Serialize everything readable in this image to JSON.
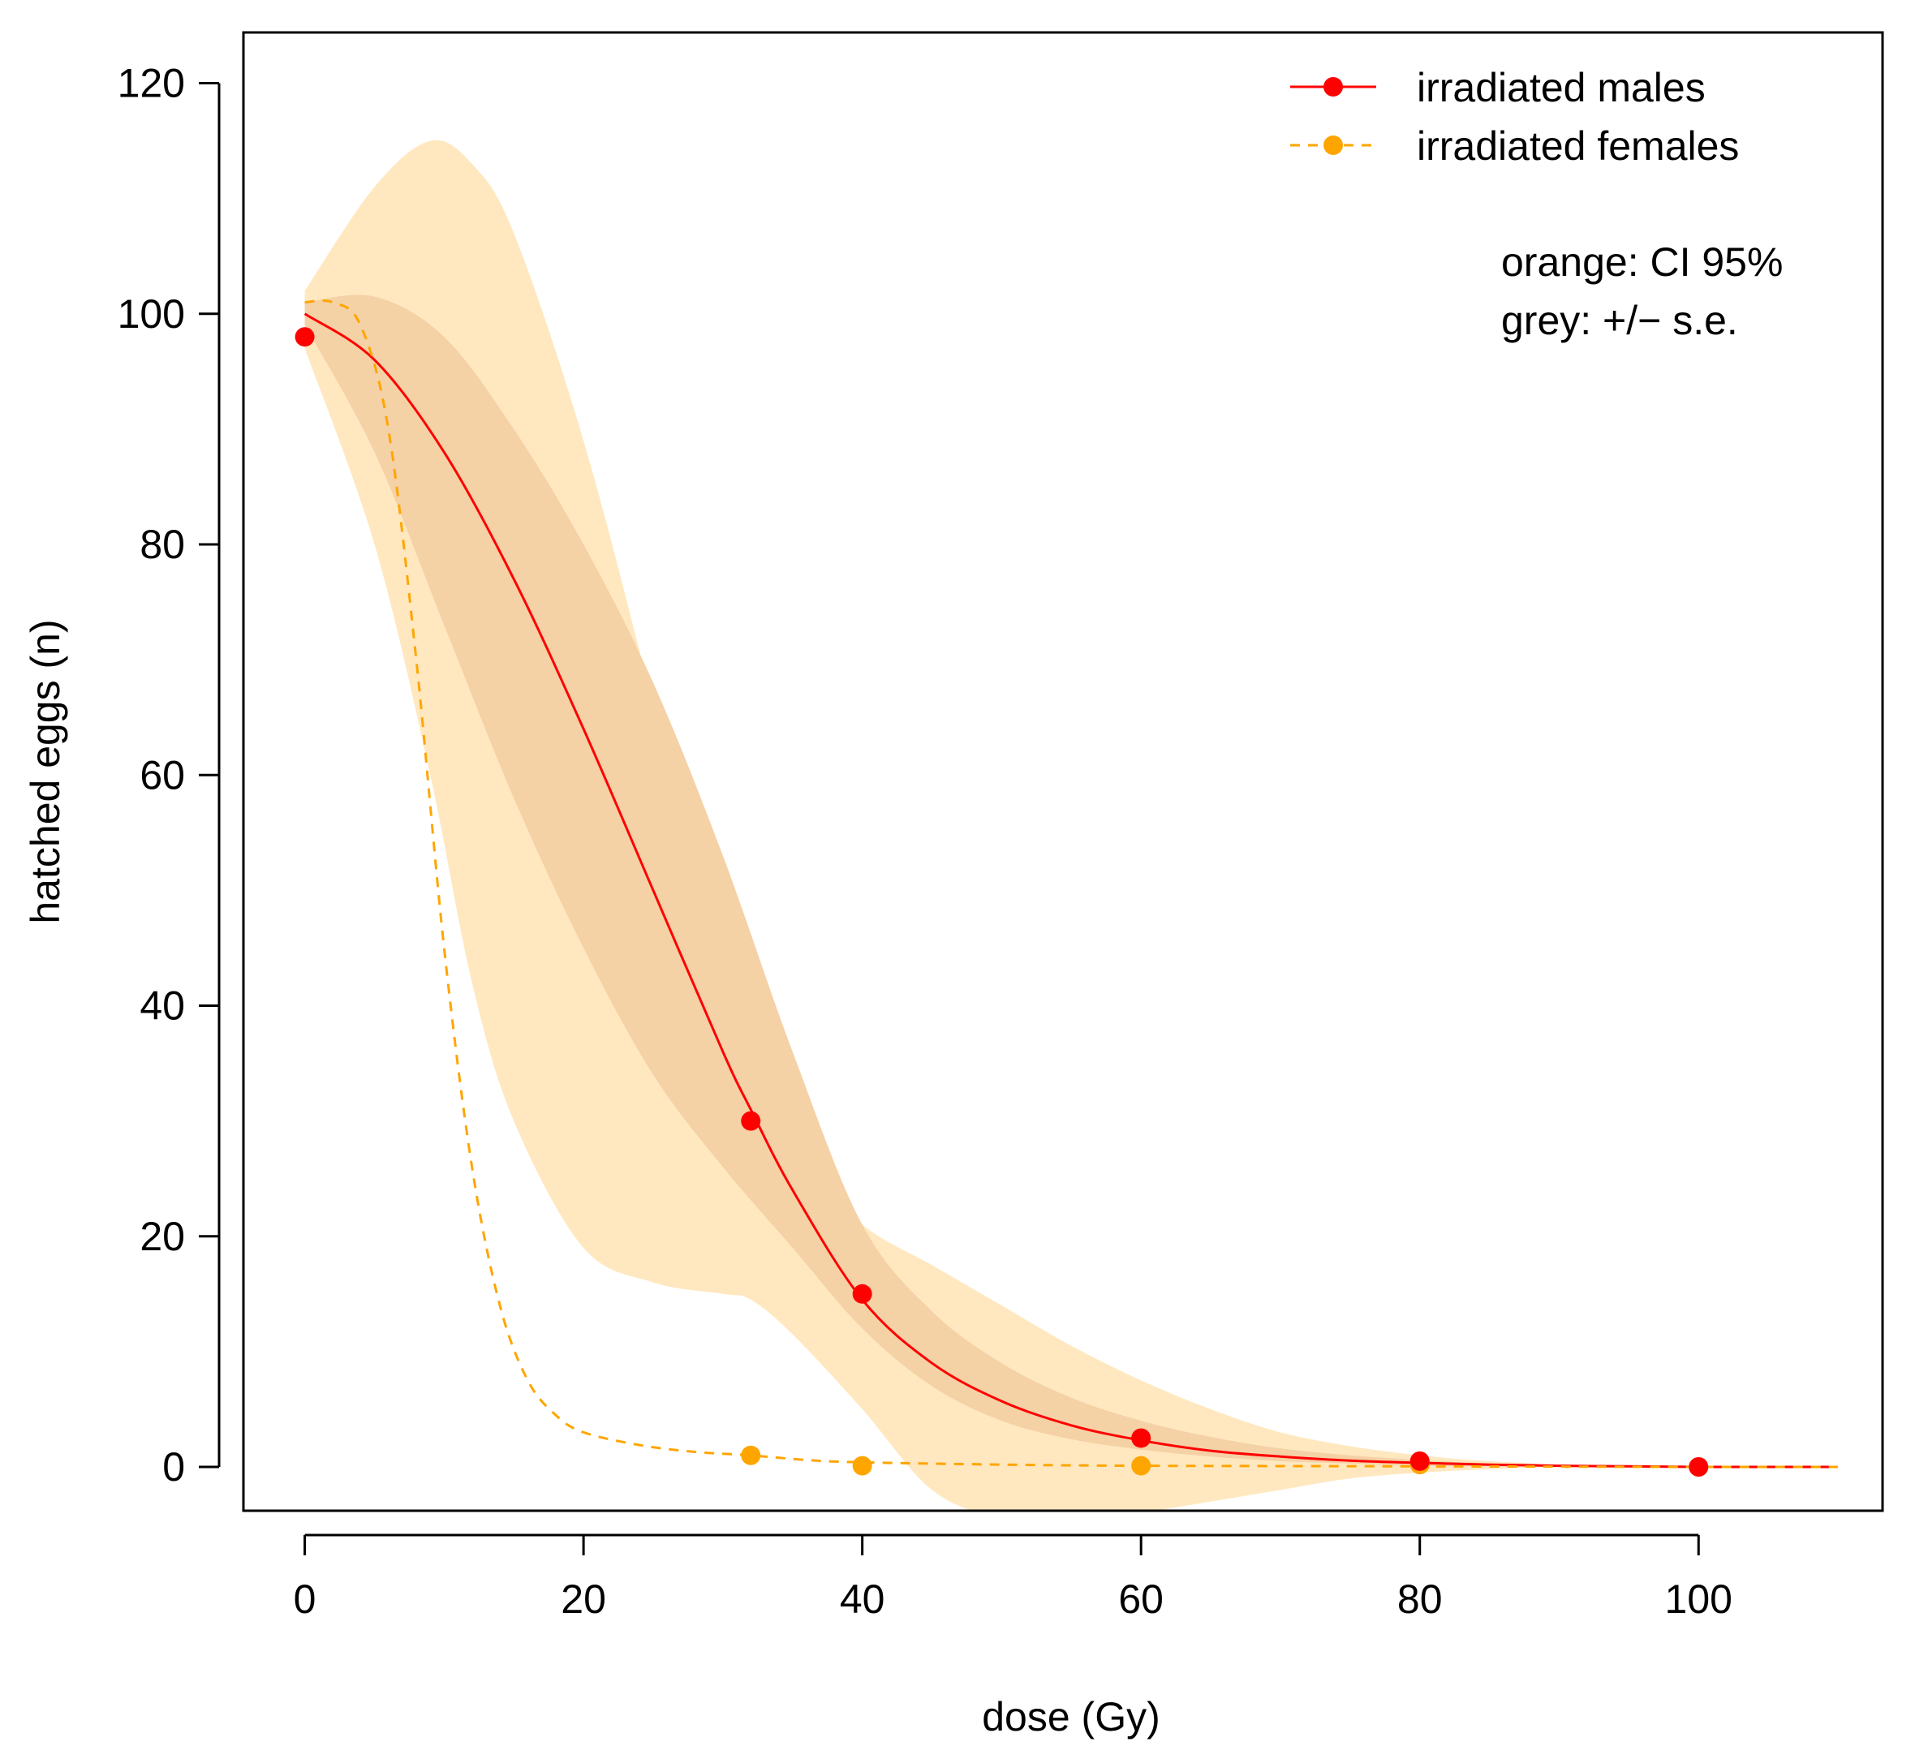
{
  "chart_data": {
    "type": "line",
    "xlabel": "dose (Gy)",
    "ylabel": "hatched eggs (n)",
    "xlim": [
      -4.4,
      113.2
    ],
    "ylim": [
      -3.8,
      124.4
    ],
    "x_ticks": [
      0,
      20,
      40,
      60,
      80,
      100
    ],
    "y_ticks": [
      0,
      20,
      40,
      60,
      80,
      100,
      120
    ],
    "legend_position": "top-right",
    "series": [
      {
        "name": "irradiated males",
        "color": "#ff0000",
        "line_style": "solid",
        "points": [
          {
            "x": 0,
            "y": 98
          },
          {
            "x": 32,
            "y": 30
          },
          {
            "x": 40,
            "y": 15
          },
          {
            "x": 60,
            "y": 2.5
          },
          {
            "x": 80,
            "y": 0.5
          },
          {
            "x": 100,
            "y": 0
          }
        ],
        "fit_curve": {
          "x": [
            0,
            5,
            10,
            15,
            20,
            25,
            30,
            32,
            35,
            40,
            45,
            50,
            55,
            60,
            65,
            70,
            75,
            80,
            85,
            90,
            95,
            100,
            105,
            110
          ],
          "y": [
            100,
            96,
            88,
            77,
            64,
            50,
            36,
            31,
            24,
            14.5,
            9,
            5.7,
            3.6,
            2.3,
            1.4,
            0.9,
            0.55,
            0.35,
            0.2,
            0.1,
            0.05,
            0,
            0,
            0
          ]
        },
        "se_band": {
          "x": [
            0,
            5,
            10,
            15,
            20,
            25,
            30,
            35,
            40,
            45,
            50,
            55,
            60,
            65,
            70,
            75,
            80,
            85,
            90,
            95,
            100,
            110
          ],
          "lower": [
            99,
            88,
            73,
            58,
            45,
            34,
            26,
            19,
            12,
            7,
            4,
            2.4,
            1.5,
            0.9,
            0.5,
            0.3,
            0.1,
            0.05,
            0,
            0,
            0,
            0
          ],
          "upper": [
            101,
            101.5,
            98,
            90,
            80,
            68,
            53,
            36,
            21,
            13.5,
            9,
            6,
            4,
            2.6,
            1.6,
            1,
            0.6,
            0.3,
            0.15,
            0.05,
            0,
            0
          ]
        },
        "ci95_band": {
          "x": [
            0,
            5,
            9,
            12,
            15,
            20,
            25,
            30,
            32,
            35,
            40,
            45,
            50,
            55,
            60,
            65,
            70,
            75,
            80,
            85,
            90,
            95,
            100,
            110
          ],
          "lower": [
            97,
            80,
            60,
            42,
            30,
            19,
            16,
            15,
            14.5,
            11.5,
            5,
            -2,
            -4.5,
            -5,
            -4,
            -3,
            -2,
            -1,
            -0.5,
            -0.2,
            0,
            0,
            0,
            0
          ],
          "upper": [
            102,
            111,
            115,
            113,
            107,
            89,
            66,
            41,
            33,
            27,
            21,
            17.5,
            14,
            10.5,
            7.5,
            5,
            3,
            1.8,
            1,
            0.5,
            0.2,
            0.05,
            0,
            0
          ]
        }
      },
      {
        "name": "irradiated females",
        "color": "#ffa500",
        "line_style": "dashed",
        "points": [
          {
            "x": 32,
            "y": 1
          },
          {
            "x": 40,
            "y": 0.1
          },
          {
            "x": 60,
            "y": 0.1
          },
          {
            "x": 80,
            "y": 0.2
          },
          {
            "x": 100,
            "y": 0
          }
        ],
        "fit_curve": {
          "x": [
            0,
            2,
            4,
            6,
            8,
            10,
            12,
            14,
            16,
            18,
            20,
            24,
            28,
            32,
            36,
            40,
            50,
            60,
            80,
            100,
            110
          ],
          "y": [
            101,
            101,
            99,
            90,
            70,
            45,
            26,
            14,
            7.5,
            4.5,
            3,
            1.9,
            1.3,
            1,
            0.6,
            0.4,
            0.2,
            0.1,
            0.05,
            0,
            0
          ]
        }
      }
    ],
    "annotations": [
      "orange: CI 95%",
      "grey: +/− s.e."
    ],
    "colors": {
      "ci95_band": "#ffe8c0",
      "se_band": "#f5d1a6",
      "plot_frame": "#000000"
    }
  }
}
